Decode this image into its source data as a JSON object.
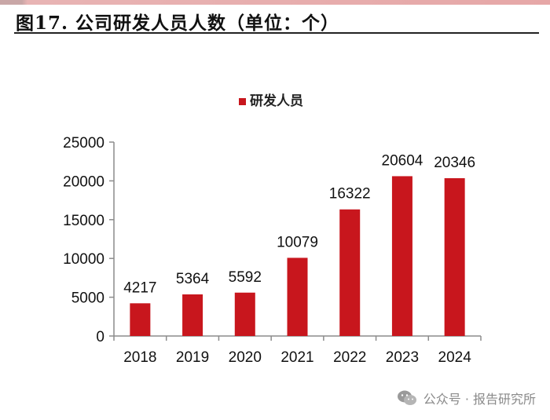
{
  "figure": {
    "title": "图17. 公司研发人员人数（单位：个）"
  },
  "watermark": {
    "text": "公众号 · 报告研究所",
    "icon": "wechat-icon"
  },
  "colors": {
    "bar": "#c8161d",
    "axis": "#8c8c8c",
    "title_rule": "#222222"
  },
  "chart_data": {
    "type": "bar",
    "title": "",
    "xlabel": "",
    "ylabel": "",
    "categories": [
      "2018",
      "2019",
      "2020",
      "2021",
      "2022",
      "2023",
      "2024"
    ],
    "series": [
      {
        "name": "研发人员",
        "values": [
          4217,
          5364,
          5592,
          10079,
          16322,
          20604,
          20346
        ],
        "color": "#c8161d"
      }
    ],
    "ylim": [
      0,
      25000
    ],
    "yticks": [
      0,
      5000,
      10000,
      15000,
      20000,
      25000
    ],
    "data_labels": true,
    "grid": false,
    "legend_position": "top-center"
  }
}
